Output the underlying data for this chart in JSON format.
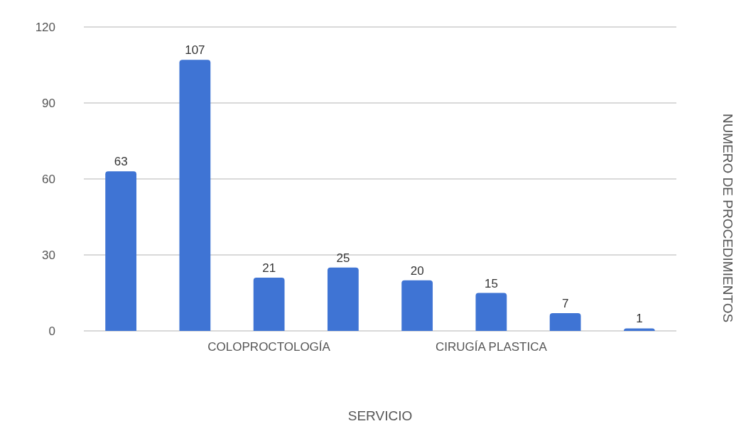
{
  "chart_data": {
    "type": "bar",
    "xlabel": "SERVICIO",
    "ylabel": "NUMERO DE PROCEDIMIENTOS",
    "categories": [
      null,
      null,
      "COLOPROCTOLOGÍA",
      null,
      null,
      "CIRUGÍA PLASTICA",
      null,
      null
    ],
    "values": [
      63,
      107,
      21,
      25,
      20,
      15,
      7,
      1
    ],
    "color": "#3f74d4",
    "ylim": [
      0,
      120
    ],
    "yticks": [
      0,
      30,
      60,
      90,
      120
    ],
    "grid": "y",
    "data_labels": true
  }
}
